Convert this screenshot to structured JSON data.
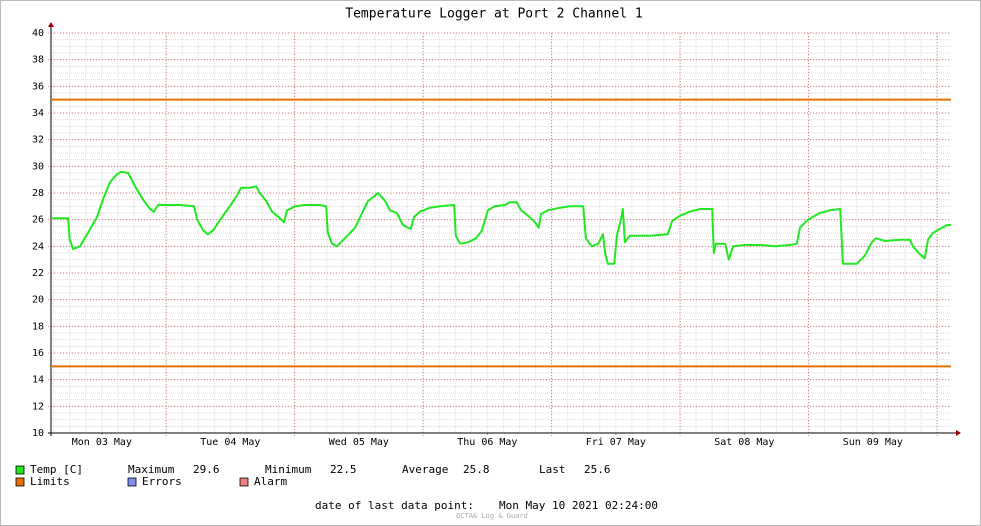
{
  "chart_data": {
    "type": "line",
    "title": "Temperature Logger at Port 2 Channel 1",
    "x": [
      2.5,
      5.7,
      6.0,
      6.6,
      7.9,
      9.4,
      11.1,
      12.2,
      13.5,
      14.8,
      15.6,
      16.9,
      18.2,
      19.7,
      21.0,
      21.7,
      22.5,
      26.6,
      29.2,
      29.8,
      30.9,
      31.8,
      32.8,
      34.1,
      35.9,
      37.2,
      38.0,
      39.7,
      40.8,
      41.5,
      42.7,
      43.8,
      45.3,
      46.0,
      46.6,
      48.1,
      49.9,
      52.7,
      53.9,
      54.2,
      55.0,
      55.9,
      57.4,
      59.3,
      60.6,
      61.7,
      63.0,
      63.6,
      64.9,
      65.8,
      67.1,
      68.2,
      69.7,
      70.3,
      71.4,
      73.3,
      75.2,
      77.8,
      78.1,
      78.9,
      80.4,
      81.9,
      83.0,
      84.1,
      85.4,
      87.3,
      88.2,
      89.5,
      90.3,
      91.6,
      92.9,
      93.6,
      94.0,
      95.3,
      97.6,
      99.4,
      101.9,
      102.4,
      103.5,
      104.7,
      105.6,
      106.0,
      106.5,
      107.7,
      108.2,
      109.0,
      109.3,
      109.7,
      110.6,
      114.4,
      117.7,
      118.5,
      120.0,
      121.8,
      123.7,
      126.0,
      126.3,
      126.7,
      128.4,
      129.1,
      129.9,
      132.1,
      134.9,
      137.7,
      140.5,
      141.8,
      142.4,
      143.9,
      146.1,
      148.0,
      149.9,
      150.4,
      151.4,
      153.0,
      154.5,
      155.8,
      156.6,
      158.3,
      161.1,
      162.9,
      163.5,
      164.8,
      165.7,
      166.3,
      167.2,
      168.5,
      169.9,
      170.6
    ],
    "series": [
      {
        "name": "Temp [C]",
        "color": "#22e822",
        "values": [
          26.1,
          26.1,
          24.5,
          23.8,
          24.0,
          25.0,
          26.2,
          27.5,
          28.8,
          29.4,
          29.6,
          29.5,
          28.5,
          27.5,
          26.8,
          26.6,
          27.1,
          27.1,
          27.0,
          26.0,
          25.2,
          24.9,
          25.2,
          26.0,
          27.0,
          27.8,
          28.4,
          28.4,
          28.5,
          28.0,
          27.4,
          26.6,
          26.1,
          25.8,
          26.7,
          27.0,
          27.1,
          27.1,
          27.0,
          25.0,
          24.2,
          24.0,
          24.6,
          25.4,
          26.5,
          27.4,
          27.8,
          28.0,
          27.4,
          26.7,
          26.5,
          25.6,
          25.3,
          26.2,
          26.6,
          26.9,
          27.0,
          27.1,
          24.8,
          24.2,
          24.3,
          24.6,
          25.2,
          26.7,
          27.0,
          27.1,
          27.3,
          27.3,
          26.7,
          26.3,
          25.8,
          25.4,
          26.4,
          26.7,
          26.9,
          27.0,
          27.0,
          24.6,
          24.0,
          24.2,
          24.9,
          23.5,
          22.7,
          22.7,
          24.8,
          26.1,
          26.8,
          24.3,
          24.8,
          24.8,
          24.9,
          25.9,
          26.3,
          26.6,
          26.8,
          26.8,
          23.5,
          24.2,
          24.2,
          23.0,
          24.0,
          24.1,
          24.1,
          24.0,
          24.1,
          24.2,
          25.4,
          26.0,
          26.5,
          26.7,
          26.8,
          22.7,
          22.7,
          22.7,
          23.3,
          24.3,
          24.6,
          24.4,
          24.5,
          24.5,
          24.0,
          23.4,
          23.1,
          24.5,
          25.0,
          25.3,
          25.6,
          25.6
        ]
      }
    ],
    "limits": {
      "name": "Limits",
      "color": "#e87000",
      "values": [
        35,
        15
      ]
    },
    "legend_extra": [
      {
        "name": "Errors",
        "color": "#7f8ff0"
      },
      {
        "name": "Alarm",
        "color": "#f08080"
      }
    ],
    "stats": [
      {
        "label": "Maximum",
        "value": 29.6
      },
      {
        "label": "Minimum",
        "value": 22.5
      },
      {
        "label": "Average",
        "value": 25.8
      },
      {
        "label": "Last",
        "value": 25.6
      }
    ],
    "xlim": [
      2.5,
      170.6
    ],
    "xticks": [
      {
        "value": 12,
        "label": "Mon 03 May"
      },
      {
        "value": 36,
        "label": "Tue 04 May"
      },
      {
        "value": 60,
        "label": "Wed 05 May"
      },
      {
        "value": 84,
        "label": "Thu 06 May"
      },
      {
        "value": 108,
        "label": "Fri 07 May"
      },
      {
        "value": 132,
        "label": "Sat 08 May"
      },
      {
        "value": 156,
        "label": "Sun 09 May"
      }
    ],
    "ylim": [
      10,
      40
    ],
    "yticks": [
      10,
      12,
      14,
      16,
      18,
      20,
      22,
      24,
      26,
      28,
      30,
      32,
      34,
      36,
      38,
      40
    ],
    "grid": true,
    "footer": {
      "label": "date of last data point:",
      "value": "Mon May 10 2021 02:24:00"
    },
    "watermark": "OCTA& Log & Guard"
  }
}
